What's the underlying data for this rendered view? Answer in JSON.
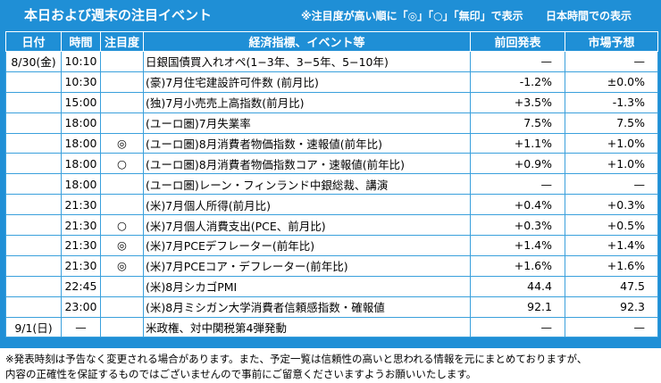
{
  "header": {
    "title": "本日および週末の注目イベント",
    "importance_note": "※注目度が高い順に「◎」「○」「無印」で表示",
    "timezone_note": "日本時間での表示"
  },
  "columns": {
    "date": "日付",
    "time": "時間",
    "importance": "注目度",
    "event": "経済指標、イベント等",
    "previous": "前回発表",
    "forecast": "市場予想"
  },
  "rows": [
    {
      "date": "8/30(金)",
      "time": "10:10",
      "importance": "",
      "event": "日銀国債買入れオペ(1−3年、3−5年、5−10年)",
      "previous": "—",
      "forecast": "—"
    },
    {
      "date": "",
      "time": "10:30",
      "importance": "",
      "event": "(豪)7月住宅建設許可件数 (前月比)",
      "previous": "-1.2%",
      "forecast": "±0.0%"
    },
    {
      "date": "",
      "time": "15:00",
      "importance": "",
      "event": "(独)7月小売売上高指数(前月比)",
      "previous": "+3.5%",
      "forecast": "-1.3%"
    },
    {
      "date": "",
      "time": "18:00",
      "importance": "",
      "event": "(ユーロ圏)7月失業率",
      "previous": "7.5%",
      "forecast": "7.5%"
    },
    {
      "date": "",
      "time": "18:00",
      "importance": "◎",
      "event": "(ユーロ圏)8月消費者物価指数・速報値(前年比)",
      "previous": "+1.1%",
      "forecast": "+1.0%"
    },
    {
      "date": "",
      "time": "18:00",
      "importance": "○",
      "event": "(ユーロ圏)8月消費者物価指数コア・速報値(前年比)",
      "previous": "+0.9%",
      "forecast": "+1.0%"
    },
    {
      "date": "",
      "time": "18:00",
      "importance": "",
      "event": "(ユーロ圏)レーン・フィンランド中銀総裁、講演",
      "previous": "—",
      "forecast": "—"
    },
    {
      "date": "",
      "time": "21:30",
      "importance": "",
      "event": "(米)7月個人所得(前月比)",
      "previous": "+0.4%",
      "forecast": "+0.3%"
    },
    {
      "date": "",
      "time": "21:30",
      "importance": "○",
      "event": "(米)7月個人消費支出(PCE、前月比)",
      "previous": "+0.3%",
      "forecast": "+0.5%"
    },
    {
      "date": "",
      "time": "21:30",
      "importance": "◎",
      "event": "(米)7月PCEデフレーター(前年比)",
      "previous": "+1.4%",
      "forecast": "+1.4%"
    },
    {
      "date": "",
      "time": "21:30",
      "importance": "◎",
      "event": "(米)7月PCEコア・デフレーター(前年比)",
      "previous": "+1.6%",
      "forecast": "+1.6%"
    },
    {
      "date": "",
      "time": "22:45",
      "importance": "",
      "event": "(米)8月シカゴPMI",
      "previous": "44.4",
      "forecast": "47.5"
    },
    {
      "date": "",
      "time": "23:00",
      "importance": "",
      "event": "(米)8月ミシガン大学消費者信頼感指数・確報値",
      "previous": "92.1",
      "forecast": "92.3"
    },
    {
      "date": "9/1(日)",
      "time": "—",
      "importance": "",
      "event": "米政権、対中関税第4弾発動",
      "previous": "—",
      "forecast": "—"
    }
  ],
  "footer": {
    "line1": "※発表時刻は予告なく変更される場合があります。また、予定一覧は信頼性の高いと思われる情報を元にまとめておりますが、",
    "line2": "内容の正確性を保証するものではございませんので事前にご留意くださいますようお願いいたします。"
  }
}
